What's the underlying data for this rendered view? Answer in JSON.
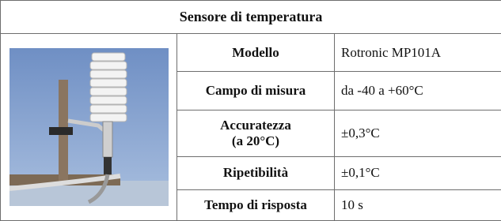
{
  "header": {
    "title": "Sensore di temperatura"
  },
  "table": {
    "rows": [
      [
        "Modello",
        "Rotronic MP101A"
      ],
      [
        "Campo di misura",
        "da -40 a +60°C"
      ],
      [
        "Accuratezza\n(a 20°C)",
        "±0,3°C"
      ],
      [
        "Ripetibilità",
        "±0,1°C"
      ],
      [
        "Tempo di risposta",
        "10 s"
      ]
    ]
  }
}
